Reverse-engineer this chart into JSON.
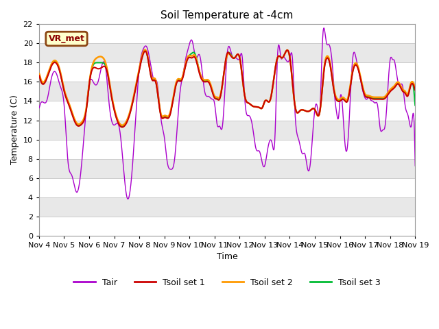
{
  "title": "Soil Temperature at -4cm",
  "xlabel": "Time",
  "ylabel": "Temperature (C)",
  "ylim": [
    0,
    22
  ],
  "yticks": [
    0,
    2,
    4,
    6,
    8,
    10,
    12,
    14,
    16,
    18,
    20,
    22
  ],
  "xtick_labels": [
    "Nov 4",
    "Nov 5",
    "Nov 6",
    "Nov 7",
    "Nov 8",
    "Nov 9",
    "Nov 10",
    "Nov 11",
    "Nov 12",
    "Nov 13",
    "Nov 14",
    "Nov 15",
    "Nov 16",
    "Nov 17",
    "Nov 18",
    "Nov 19"
  ],
  "annotation_text": "VR_met",
  "bg_color": "#f0f0f0",
  "band_colors": [
    "#ffffff",
    "#e8e8e8"
  ],
  "grid_color": "#cccccc",
  "line_colors": {
    "Tair": "#aa00cc",
    "Tsoil1": "#cc0000",
    "Tsoil2": "#ff9900",
    "Tsoil3": "#00bb33"
  },
  "line_widths": {
    "Tair": 1.0,
    "Tsoil1": 1.5,
    "Tsoil2": 1.8,
    "Tsoil3": 1.5
  },
  "days": 15,
  "tair_keypoints": [
    [
      0.0,
      13.2
    ],
    [
      0.15,
      13.9
    ],
    [
      0.3,
      14.0
    ],
    [
      0.5,
      16.5
    ],
    [
      0.7,
      16.8
    ],
    [
      0.85,
      15.5
    ],
    [
      1.0,
      13.5
    ],
    [
      1.15,
      7.7
    ],
    [
      1.3,
      6.3
    ],
    [
      1.5,
      4.5
    ],
    [
      1.7,
      7.6
    ],
    [
      2.0,
      15.9
    ],
    [
      2.2,
      15.8
    ],
    [
      2.35,
      16.0
    ],
    [
      2.5,
      17.7
    ],
    [
      2.65,
      17.5
    ],
    [
      2.8,
      13.5
    ],
    [
      3.0,
      11.5
    ],
    [
      3.1,
      11.7
    ],
    [
      3.2,
      11.2
    ],
    [
      3.35,
      7.5
    ],
    [
      3.5,
      4.0
    ],
    [
      3.7,
      6.5
    ],
    [
      4.0,
      17.5
    ],
    [
      4.15,
      19.4
    ],
    [
      4.3,
      19.6
    ],
    [
      4.5,
      17.0
    ],
    [
      4.6,
      16.1
    ],
    [
      4.7,
      16.0
    ],
    [
      4.85,
      12.3
    ],
    [
      5.0,
      10.1
    ],
    [
      5.1,
      7.8
    ],
    [
      5.25,
      6.9
    ],
    [
      5.4,
      7.9
    ],
    [
      5.6,
      14.5
    ],
    [
      5.75,
      17.0
    ],
    [
      5.85,
      18.5
    ],
    [
      5.95,
      19.5
    ],
    [
      6.1,
      20.3
    ],
    [
      6.25,
      18.5
    ],
    [
      6.4,
      18.8
    ],
    [
      6.6,
      15.0
    ],
    [
      6.75,
      14.5
    ],
    [
      6.9,
      14.2
    ],
    [
      7.0,
      13.7
    ],
    [
      7.1,
      11.5
    ],
    [
      7.2,
      11.4
    ],
    [
      7.3,
      11.2
    ],
    [
      7.5,
      19.0
    ],
    [
      7.65,
      19.1
    ],
    [
      7.75,
      18.5
    ],
    [
      7.85,
      18.5
    ],
    [
      8.0,
      18.5
    ],
    [
      8.1,
      18.6
    ],
    [
      8.2,
      14.2
    ],
    [
      8.35,
      12.5
    ],
    [
      8.5,
      11.5
    ],
    [
      8.65,
      9.0
    ],
    [
      8.8,
      8.7
    ],
    [
      8.9,
      7.5
    ],
    [
      9.0,
      7.3
    ],
    [
      9.1,
      8.8
    ],
    [
      9.2,
      9.9
    ],
    [
      9.3,
      9.5
    ],
    [
      9.4,
      10.0
    ],
    [
      9.5,
      18.5
    ],
    [
      9.65,
      18.4
    ],
    [
      9.7,
      18.5
    ],
    [
      10.0,
      18.5
    ],
    [
      10.1,
      18.5
    ],
    [
      10.2,
      12.9
    ],
    [
      10.35,
      10.0
    ],
    [
      10.5,
      8.5
    ],
    [
      10.6,
      8.5
    ],
    [
      10.7,
      7.0
    ],
    [
      10.8,
      7.2
    ],
    [
      11.0,
      13.3
    ],
    [
      11.1,
      13.3
    ],
    [
      11.2,
      13.2
    ],
    [
      11.3,
      20.4
    ],
    [
      11.45,
      20.1
    ],
    [
      11.55,
      19.9
    ],
    [
      11.7,
      17.5
    ],
    [
      11.8,
      14.0
    ],
    [
      11.85,
      13.0
    ],
    [
      11.95,
      12.5
    ],
    [
      12.0,
      14.3
    ],
    [
      12.1,
      13.3
    ],
    [
      12.2,
      9.4
    ],
    [
      12.3,
      9.4
    ],
    [
      12.5,
      18.4
    ],
    [
      12.65,
      18.3
    ],
    [
      12.7,
      17.7
    ],
    [
      13.0,
      14.3
    ],
    [
      13.1,
      14.3
    ],
    [
      13.15,
      14.5
    ],
    [
      13.2,
      14.2
    ],
    [
      13.3,
      14.0
    ],
    [
      13.4,
      13.8
    ],
    [
      13.5,
      13.5
    ],
    [
      13.6,
      11.1
    ],
    [
      13.7,
      11.0
    ],
    [
      13.8,
      11.5
    ],
    [
      14.0,
      18.4
    ],
    [
      14.1,
      18.3
    ],
    [
      14.15,
      18.3
    ],
    [
      14.3,
      16.1
    ],
    [
      14.4,
      15.7
    ],
    [
      14.5,
      15.5
    ],
    [
      14.6,
      13.4
    ],
    [
      14.7,
      12.6
    ],
    [
      14.75,
      12.0
    ],
    [
      14.85,
      11.5
    ],
    [
      14.95,
      12.0
    ],
    [
      15.0,
      6.0
    ]
  ],
  "tsoil1_keypoints": [
    [
      0.0,
      16.8
    ],
    [
      0.3,
      16.3
    ],
    [
      0.5,
      17.7
    ],
    [
      0.7,
      17.9
    ],
    [
      0.85,
      16.8
    ],
    [
      1.0,
      15.0
    ],
    [
      1.2,
      13.5
    ],
    [
      1.5,
      11.5
    ],
    [
      1.7,
      11.6
    ],
    [
      1.9,
      13.4
    ],
    [
      2.0,
      15.8
    ],
    [
      2.3,
      17.4
    ],
    [
      2.5,
      17.5
    ],
    [
      2.7,
      17.2
    ],
    [
      2.85,
      15.0
    ],
    [
      3.0,
      13.0
    ],
    [
      3.2,
      11.5
    ],
    [
      3.4,
      11.4
    ],
    [
      3.6,
      12.5
    ],
    [
      4.0,
      17.3
    ],
    [
      4.15,
      18.9
    ],
    [
      4.3,
      18.9
    ],
    [
      4.5,
      16.2
    ],
    [
      4.65,
      16.0
    ],
    [
      4.85,
      12.5
    ],
    [
      5.0,
      12.3
    ],
    [
      5.2,
      12.4
    ],
    [
      5.5,
      16.0
    ],
    [
      5.7,
      16.2
    ],
    [
      5.85,
      17.8
    ],
    [
      5.95,
      18.5
    ],
    [
      6.1,
      18.5
    ],
    [
      6.2,
      18.6
    ],
    [
      6.4,
      16.8
    ],
    [
      6.6,
      16.0
    ],
    [
      6.8,
      15.8
    ],
    [
      7.0,
      14.3
    ],
    [
      7.1,
      14.2
    ],
    [
      7.2,
      14.2
    ],
    [
      7.5,
      19.0
    ],
    [
      7.6,
      18.9
    ],
    [
      7.8,
      18.5
    ],
    [
      8.0,
      18.5
    ],
    [
      8.2,
      14.5
    ],
    [
      8.35,
      13.8
    ],
    [
      8.5,
      13.5
    ],
    [
      8.65,
      13.4
    ],
    [
      8.8,
      13.3
    ],
    [
      8.9,
      13.3
    ],
    [
      9.0,
      14.0
    ],
    [
      9.1,
      14.0
    ],
    [
      9.2,
      14.0
    ],
    [
      9.5,
      18.5
    ],
    [
      9.7,
      18.5
    ],
    [
      10.0,
      18.5
    ],
    [
      10.2,
      13.5
    ],
    [
      10.4,
      13.0
    ],
    [
      10.6,
      13.0
    ],
    [
      10.8,
      13.0
    ],
    [
      11.0,
      13.1
    ],
    [
      11.2,
      13.0
    ],
    [
      11.35,
      17.0
    ],
    [
      11.5,
      18.5
    ],
    [
      11.6,
      17.8
    ],
    [
      11.7,
      16.0
    ],
    [
      11.8,
      14.5
    ],
    [
      11.9,
      14.0
    ],
    [
      12.0,
      14.0
    ],
    [
      12.1,
      14.2
    ],
    [
      12.2,
      14.0
    ],
    [
      12.3,
      14.0
    ],
    [
      12.5,
      17.0
    ],
    [
      12.7,
      17.5
    ],
    [
      13.0,
      14.5
    ],
    [
      13.1,
      14.4
    ],
    [
      13.2,
      14.3
    ],
    [
      13.4,
      14.2
    ],
    [
      13.6,
      14.2
    ],
    [
      13.8,
      14.3
    ],
    [
      14.0,
      15.0
    ],
    [
      14.2,
      15.5
    ],
    [
      14.3,
      15.8
    ],
    [
      14.5,
      15.0
    ],
    [
      14.6,
      14.8
    ],
    [
      14.7,
      14.5
    ],
    [
      14.8,
      15.5
    ],
    [
      14.9,
      15.8
    ],
    [
      15.0,
      15.0
    ]
  ],
  "tsoil2_keypoints": [
    [
      0.0,
      17.0
    ],
    [
      0.3,
      16.5
    ],
    [
      0.5,
      17.9
    ],
    [
      0.7,
      18.1
    ],
    [
      0.85,
      17.0
    ],
    [
      1.0,
      15.2
    ],
    [
      1.2,
      13.7
    ],
    [
      1.5,
      11.7
    ],
    [
      1.7,
      11.8
    ],
    [
      1.9,
      13.6
    ],
    [
      2.0,
      15.9
    ],
    [
      2.3,
      18.5
    ],
    [
      2.5,
      18.6
    ],
    [
      2.7,
      17.5
    ],
    [
      2.85,
      15.2
    ],
    [
      3.0,
      13.2
    ],
    [
      3.2,
      11.7
    ],
    [
      3.4,
      11.6
    ],
    [
      3.6,
      12.7
    ],
    [
      4.0,
      17.5
    ],
    [
      4.15,
      19.1
    ],
    [
      4.3,
      19.0
    ],
    [
      4.5,
      16.4
    ],
    [
      4.65,
      16.2
    ],
    [
      4.85,
      12.7
    ],
    [
      5.0,
      12.5
    ],
    [
      5.2,
      12.6
    ],
    [
      5.5,
      16.2
    ],
    [
      5.7,
      16.4
    ],
    [
      5.85,
      18.0
    ],
    [
      5.95,
      18.7
    ],
    [
      6.1,
      18.7
    ],
    [
      6.2,
      18.8
    ],
    [
      6.4,
      17.0
    ],
    [
      6.6,
      16.2
    ],
    [
      6.8,
      16.0
    ],
    [
      7.0,
      14.5
    ],
    [
      7.1,
      14.4
    ],
    [
      7.2,
      14.4
    ],
    [
      7.5,
      18.8
    ],
    [
      7.6,
      18.9
    ],
    [
      7.8,
      18.5
    ],
    [
      8.0,
      18.5
    ],
    [
      8.2,
      14.5
    ],
    [
      8.35,
      13.8
    ],
    [
      8.5,
      13.5
    ],
    [
      8.65,
      13.4
    ],
    [
      8.8,
      13.3
    ],
    [
      8.9,
      13.3
    ],
    [
      9.0,
      14.0
    ],
    [
      9.1,
      14.0
    ],
    [
      9.2,
      14.0
    ],
    [
      9.5,
      18.5
    ],
    [
      9.7,
      18.5
    ],
    [
      10.0,
      18.5
    ],
    [
      10.2,
      13.5
    ],
    [
      10.4,
      13.0
    ],
    [
      10.6,
      13.0
    ],
    [
      10.8,
      13.0
    ],
    [
      11.0,
      13.1
    ],
    [
      11.2,
      13.0
    ],
    [
      11.35,
      17.2
    ],
    [
      11.5,
      18.7
    ],
    [
      11.6,
      18.0
    ],
    [
      11.7,
      16.2
    ],
    [
      11.8,
      14.7
    ],
    [
      11.9,
      14.2
    ],
    [
      12.0,
      14.2
    ],
    [
      12.1,
      14.4
    ],
    [
      12.2,
      14.2
    ],
    [
      12.3,
      14.2
    ],
    [
      12.5,
      17.2
    ],
    [
      12.7,
      17.7
    ],
    [
      13.0,
      14.7
    ],
    [
      13.1,
      14.6
    ],
    [
      13.2,
      14.5
    ],
    [
      13.4,
      14.4
    ],
    [
      13.6,
      14.4
    ],
    [
      13.8,
      14.5
    ],
    [
      14.0,
      15.2
    ],
    [
      14.2,
      15.7
    ],
    [
      14.3,
      16.0
    ],
    [
      14.5,
      15.2
    ],
    [
      14.6,
      15.0
    ],
    [
      14.7,
      14.7
    ],
    [
      14.8,
      15.7
    ],
    [
      14.9,
      16.0
    ],
    [
      15.0,
      15.2
    ]
  ],
  "tsoil3_keypoints": [
    [
      0.0,
      16.9
    ],
    [
      0.3,
      16.4
    ],
    [
      0.5,
      17.8
    ],
    [
      0.7,
      18.0
    ],
    [
      0.85,
      16.9
    ],
    [
      1.0,
      15.1
    ],
    [
      1.2,
      13.6
    ],
    [
      1.5,
      11.6
    ],
    [
      1.7,
      11.7
    ],
    [
      1.9,
      13.5
    ],
    [
      2.0,
      15.85
    ],
    [
      2.3,
      18.0
    ],
    [
      2.5,
      18.0
    ],
    [
      2.7,
      17.3
    ],
    [
      2.85,
      15.1
    ],
    [
      3.0,
      13.1
    ],
    [
      3.2,
      11.6
    ],
    [
      3.4,
      11.5
    ],
    [
      3.6,
      12.6
    ],
    [
      4.0,
      17.4
    ],
    [
      4.15,
      19.0
    ],
    [
      4.3,
      18.95
    ],
    [
      4.5,
      16.3
    ],
    [
      4.65,
      16.1
    ],
    [
      4.85,
      12.6
    ],
    [
      5.0,
      12.4
    ],
    [
      5.2,
      12.5
    ],
    [
      5.5,
      16.1
    ],
    [
      5.7,
      16.3
    ],
    [
      5.85,
      17.9
    ],
    [
      5.95,
      18.6
    ],
    [
      6.1,
      19.0
    ],
    [
      6.2,
      19.0
    ],
    [
      6.4,
      17.0
    ],
    [
      6.6,
      16.1
    ],
    [
      6.8,
      15.9
    ],
    [
      7.0,
      14.4
    ],
    [
      7.1,
      14.3
    ],
    [
      7.2,
      14.3
    ],
    [
      7.5,
      18.9
    ],
    [
      7.6,
      19.0
    ],
    [
      7.8,
      18.5
    ],
    [
      8.0,
      18.5
    ],
    [
      8.2,
      14.5
    ],
    [
      8.35,
      13.8
    ],
    [
      8.5,
      13.5
    ],
    [
      8.65,
      13.4
    ],
    [
      8.8,
      13.3
    ],
    [
      8.9,
      13.3
    ],
    [
      9.0,
      14.0
    ],
    [
      9.1,
      14.0
    ],
    [
      9.2,
      14.0
    ],
    [
      9.5,
      18.5
    ],
    [
      9.7,
      18.5
    ],
    [
      10.0,
      18.5
    ],
    [
      10.2,
      13.5
    ],
    [
      10.4,
      13.0
    ],
    [
      10.6,
      13.0
    ],
    [
      10.8,
      13.0
    ],
    [
      11.0,
      13.1
    ],
    [
      11.2,
      13.0
    ],
    [
      11.35,
      17.1
    ],
    [
      11.5,
      18.6
    ],
    [
      11.6,
      17.9
    ],
    [
      11.7,
      16.1
    ],
    [
      11.8,
      14.6
    ],
    [
      11.9,
      14.1
    ],
    [
      12.0,
      14.1
    ],
    [
      12.1,
      14.3
    ],
    [
      12.2,
      14.1
    ],
    [
      12.3,
      14.1
    ],
    [
      12.5,
      17.1
    ],
    [
      12.7,
      17.6
    ],
    [
      13.0,
      14.6
    ],
    [
      13.1,
      14.5
    ],
    [
      13.2,
      14.4
    ],
    [
      13.4,
      14.3
    ],
    [
      13.6,
      14.3
    ],
    [
      13.8,
      14.4
    ],
    [
      14.0,
      15.1
    ],
    [
      14.2,
      15.6
    ],
    [
      14.3,
      15.9
    ],
    [
      14.5,
      15.1
    ],
    [
      14.6,
      14.9
    ],
    [
      14.7,
      14.6
    ],
    [
      14.8,
      15.6
    ],
    [
      14.9,
      15.9
    ],
    [
      15.0,
      13.0
    ]
  ]
}
